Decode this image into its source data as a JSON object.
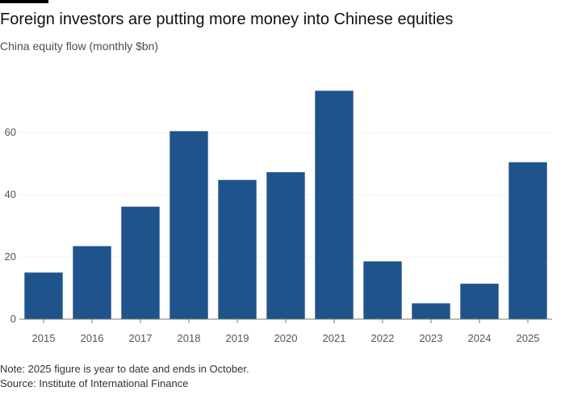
{
  "header": {
    "title": "Foreign investors are putting more money into Chinese equities",
    "subtitle": "China equity flow (monthly $bn)"
  },
  "footer": {
    "note": "Note: 2025 figure is year to date and ends in October.",
    "source": "Source: Institute of International Finance"
  },
  "colors": {
    "bar": "#1f538c",
    "gridline": "#f2f2f2",
    "baseline": "#7a7a7a"
  },
  "chart_data": {
    "type": "bar",
    "title": "Foreign investors are putting more money into Chinese equities",
    "subtitle": "China equity flow (monthly $bn)",
    "categories": [
      "2015",
      "2016",
      "2017",
      "2018",
      "2019",
      "2020",
      "2021",
      "2022",
      "2023",
      "2024",
      "2025"
    ],
    "values": [
      15,
      23.5,
      36.2,
      60.5,
      44.8,
      47.3,
      73.5,
      18.6,
      5.1,
      11.4,
      50.5
    ],
    "ylim": [
      0,
      78
    ],
    "yticks": [
      0,
      20,
      40,
      60
    ],
    "xlabel": "",
    "ylabel": "",
    "grid": true,
    "legend": "none"
  }
}
